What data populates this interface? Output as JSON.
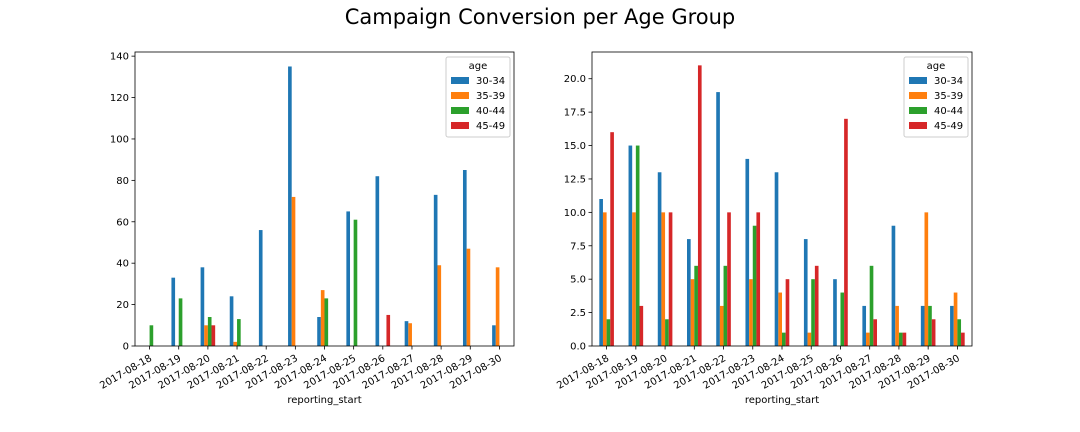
{
  "figure": {
    "title": "Campaign Conversion per Age Group"
  },
  "chart_data": [
    {
      "type": "bar",
      "xlabel": "reporting_start",
      "ylabel": "",
      "ylim": [
        0,
        142
      ],
      "yticks": [
        0,
        20,
        40,
        60,
        80,
        100,
        120,
        140
      ],
      "ytick_labels": [
        "0",
        "20",
        "40",
        "60",
        "80",
        "100",
        "120",
        "140"
      ],
      "legend": {
        "title": "age",
        "placement": "top-right"
      },
      "grid": false,
      "categories": [
        "2017-08-18",
        "2017-08-19",
        "2017-08-20",
        "2017-08-21",
        "2017-08-22",
        "2017-08-23",
        "2017-08-24",
        "2017-08-25",
        "2017-08-26",
        "2017-08-27",
        "2017-08-28",
        "2017-08-29",
        "2017-08-30"
      ],
      "series": [
        {
          "name": "30-34",
          "color": "#1f77b4",
          "values": [
            0,
            33,
            38,
            24,
            56,
            135,
            14,
            65,
            82,
            12,
            73,
            85,
            10
          ]
        },
        {
          "name": "35-39",
          "color": "#ff7f0e",
          "values": [
            0,
            0,
            10,
            2,
            0,
            72,
            27,
            0,
            0,
            11,
            39,
            47,
            38
          ]
        },
        {
          "name": "40-44",
          "color": "#2ca02c",
          "values": [
            10,
            23,
            14,
            13,
            0,
            0,
            23,
            61,
            0,
            0,
            0,
            0,
            0
          ]
        },
        {
          "name": "45-49",
          "color": "#d62728",
          "values": [
            0,
            0,
            10,
            0,
            0,
            0,
            0,
            0,
            15,
            0,
            0,
            0,
            0
          ]
        }
      ]
    },
    {
      "type": "bar",
      "xlabel": "reporting_start",
      "ylabel": "",
      "ylim": [
        0,
        22
      ],
      "yticks": [
        0,
        2.5,
        5,
        7.5,
        10,
        12.5,
        15,
        17.5,
        20
      ],
      "ytick_labels": [
        "0.0",
        "2.5",
        "5.0",
        "7.5",
        "10.0",
        "12.5",
        "15.0",
        "17.5",
        "20.0"
      ],
      "legend": {
        "title": "age",
        "placement": "top-right"
      },
      "grid": false,
      "categories": [
        "2017-08-18",
        "2017-08-19",
        "2017-08-20",
        "2017-08-21",
        "2017-08-22",
        "2017-08-23",
        "2017-08-24",
        "2017-08-25",
        "2017-08-26",
        "2017-08-27",
        "2017-08-28",
        "2017-08-29",
        "2017-08-30"
      ],
      "series": [
        {
          "name": "30-34",
          "color": "#1f77b4",
          "values": [
            11,
            15,
            13,
            8,
            19,
            14,
            13,
            8,
            5,
            3,
            9,
            3,
            3
          ]
        },
        {
          "name": "35-39",
          "color": "#ff7f0e",
          "values": [
            10,
            10,
            10,
            5,
            3,
            5,
            4,
            1,
            0,
            1,
            3,
            10,
            4
          ]
        },
        {
          "name": "40-44",
          "color": "#2ca02c",
          "values": [
            2,
            15,
            2,
            6,
            6,
            9,
            1,
            5,
            4,
            6,
            1,
            3,
            2
          ]
        },
        {
          "name": "45-49",
          "color": "#d62728",
          "values": [
            16,
            3,
            10,
            21,
            10,
            10,
            5,
            6,
            17,
            2,
            1,
            2,
            1
          ]
        }
      ]
    }
  ]
}
